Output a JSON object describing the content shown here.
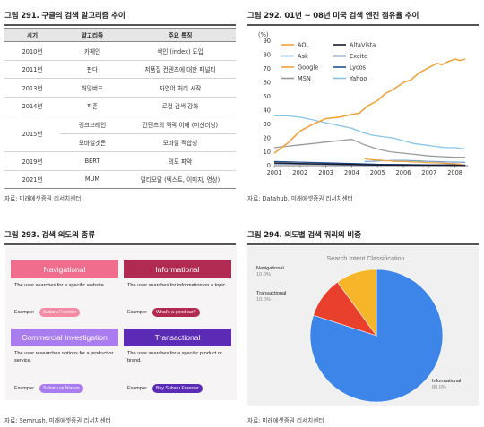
{
  "panel291": {
    "title": "그림 291. 구글의 검색 알고리즘 추이",
    "source": "자료: 미래에셋증권 리서치센터",
    "headers": [
      "시기",
      "알고리즘",
      "주요 특징"
    ],
    "rows": [
      {
        "year": "2010년",
        "algo": "카페인",
        "feature": "색인 (index) 도입"
      },
      {
        "year": "2011년",
        "algo": "판다",
        "feature": "저품질 컨텐츠에 대한 패널티"
      },
      {
        "year": "2013년",
        "algo": "허밍버드",
        "feature": "자연어 처리 시작"
      },
      {
        "year": "2014년",
        "algo": "피존",
        "feature": "로컬 검색 강화"
      },
      {
        "year": "2015년",
        "algo": "랭크브레인",
        "feature": "컨텐츠의 맥락 이해 (머신러닝)"
      },
      {
        "year": "",
        "algo": "모바일겟돈",
        "feature": "모바일 적합성"
      },
      {
        "year": "2019년",
        "algo": "BERT",
        "feature": "의도 파악"
      },
      {
        "year": "2021년",
        "algo": "MUM",
        "feature": "멀티모달 (텍스트, 이미지, 영상)"
      }
    ]
  },
  "panel292": {
    "title": "그림 292. 01년 ~ 08년 미국 검색 엔진 점유율 추이",
    "source": "자료: Datahub, 미래에셋증권 리서치센터",
    "unit": "(%)",
    "chart_data": {
      "type": "line",
      "title": "",
      "xlabel": "",
      "ylabel": "",
      "xlim": [
        2001,
        2008.5
      ],
      "ylim": [
        0,
        90
      ],
      "yticks": [
        0,
        10,
        20,
        30,
        40,
        50,
        60,
        70,
        80,
        90
      ],
      "xticks": [
        2001,
        2002,
        2003,
        2004,
        2005,
        2006,
        2007,
        2008
      ],
      "legend_placement": "top-left",
      "series": [
        {
          "name": "AOL",
          "color": "#f0a23c",
          "x": [
            2004.5,
            2004.7,
            2004.9,
            2005.1,
            2005.3,
            2005.5,
            2005.7,
            2005.9,
            2006.1,
            2006.3,
            2006.5,
            2006.7,
            2006.9,
            2007.1,
            2007.3,
            2007.5,
            2007.7,
            2007.9,
            2008.1,
            2008.3
          ],
          "y": [
            5,
            4.5,
            4,
            4,
            3.5,
            3.5,
            3,
            3,
            3,
            2.8,
            2.5,
            2.5,
            2.2,
            2,
            2,
            1.8,
            1.5,
            1.5,
            1.2,
            1
          ]
        },
        {
          "name": "AltaVista",
          "color": "#1a1a2e",
          "x": [
            2001,
            2002,
            2003,
            2004,
            2004.6,
            2005,
            2006,
            2007,
            2008,
            2008.4
          ],
          "y": [
            2,
            1.5,
            1.2,
            1,
            0.6,
            0.5,
            0.4,
            0.3,
            0.2,
            0.2
          ]
        },
        {
          "name": "Ask",
          "color": "#7aa5cc",
          "x": [
            2004.5,
            2004.8,
            2005.1,
            2005.4,
            2005.7,
            2006,
            2006.3,
            2006.6,
            2006.9,
            2007.2,
            2007.5,
            2007.8,
            2008.1,
            2008.4
          ],
          "y": [
            3,
            3.2,
            3.5,
            3.6,
            3.8,
            3.8,
            3.6,
            3.4,
            3.2,
            3,
            2.8,
            2.6,
            2.5,
            2.4
          ]
        },
        {
          "name": "Excite",
          "color": "#2a4a78",
          "x": [
            2001,
            2002,
            2003,
            2004,
            2004.6,
            2005,
            2006,
            2007,
            2008,
            2008.4
          ],
          "y": [
            1.5,
            1.2,
            1,
            0.8,
            0.5,
            0.4,
            0.3,
            0.3,
            0.2,
            0.2
          ]
        },
        {
          "name": "Google",
          "color": "#f0a23c",
          "x": [
            2001,
            2001.5,
            2002,
            2002.5,
            2003,
            2003.5,
            2004,
            2004.3,
            2004.6,
            2005,
            2005.3,
            2005.6,
            2006,
            2006.3,
            2006.6,
            2006.9,
            2007.1,
            2007.3,
            2007.5,
            2007.7,
            2008,
            2008.2,
            2008.4
          ],
          "y": [
            9,
            16,
            25,
            30,
            34,
            35,
            37,
            38,
            43,
            47,
            52,
            55,
            60,
            62,
            67,
            70,
            72,
            74,
            73,
            75,
            77,
            76,
            77
          ]
        },
        {
          "name": "Lycos",
          "color": "#1f4e8c",
          "x": [
            2001,
            2002,
            2003,
            2004,
            2004.6,
            2005,
            2006,
            2007,
            2008,
            2008.4
          ],
          "y": [
            3,
            2.5,
            2,
            1.5,
            1.2,
            1,
            0.8,
            0.6,
            0.5,
            0.4
          ]
        },
        {
          "name": "MSN",
          "color": "#9a9a9a",
          "x": [
            2001,
            2001.5,
            2002,
            2002.5,
            2003,
            2003.5,
            2004,
            2004.5,
            2005,
            2005.5,
            2006,
            2006.5,
            2007,
            2007.5,
            2008,
            2008.4
          ],
          "y": [
            13,
            14,
            15,
            16,
            17,
            18,
            19,
            15,
            12,
            10,
            9,
            8,
            7,
            6.5,
            6,
            6
          ]
        },
        {
          "name": "Yahoo",
          "color": "#86c5e6",
          "x": [
            2001,
            2001.5,
            2002,
            2002.5,
            2003,
            2003.5,
            2004,
            2004.4,
            2004.8,
            2005.2,
            2005.6,
            2006,
            2006.4,
            2006.8,
            2007.2,
            2007.6,
            2008,
            2008.4
          ],
          "y": [
            36,
            36,
            35,
            33,
            31,
            29,
            27,
            24,
            22,
            21,
            20,
            18,
            16,
            15,
            14,
            13,
            13,
            12
          ]
        }
      ]
    }
  },
  "panel293": {
    "title": "그림 293.  검색 의도의 종류",
    "source": "자료: Semrush, 미래에셋증권 리서치센터",
    "example_label": "Example:",
    "cards": [
      {
        "title": "Navigational",
        "desc": "The user searches for a specific website.",
        "example": "Subaru Forester",
        "color": "#f16d8e",
        "pill": "#f58aa4"
      },
      {
        "title": "Informational",
        "desc": "The user searches for information on a topic.",
        "example": "What's a good car?",
        "color": "#b12a52",
        "pill": "#b12a52"
      },
      {
        "title": "Commercial Investigation",
        "desc": "The user researches options for a product or service.",
        "example": "Subaru vs Nissan",
        "color": "#a97cf0",
        "pill": "#a97cf0"
      },
      {
        "title": "Transactional",
        "desc": "The user searches for a specific product or brand.",
        "example": "Buy Subaru Forester",
        "color": "#5b2bb5",
        "pill": "#5b2bb5"
      }
    ]
  },
  "panel294": {
    "title": "그림 294. 의도별 검색 쿼리의 비중",
    "source": "자료: 미래에셋증권 리서치센터",
    "chart_data": {
      "type": "pie",
      "title": "Search Intent Classification",
      "slices": [
        {
          "label": "Informational",
          "value": 80.0,
          "display": "80.0%",
          "color": "#3d85e8"
        },
        {
          "label": "Transactional",
          "value": 10.0,
          "display": "10.0%",
          "color": "#e8402c"
        },
        {
          "label": "Navigational",
          "value": 10.0,
          "display": "10.0%",
          "color": "#f7b52a"
        }
      ]
    }
  }
}
